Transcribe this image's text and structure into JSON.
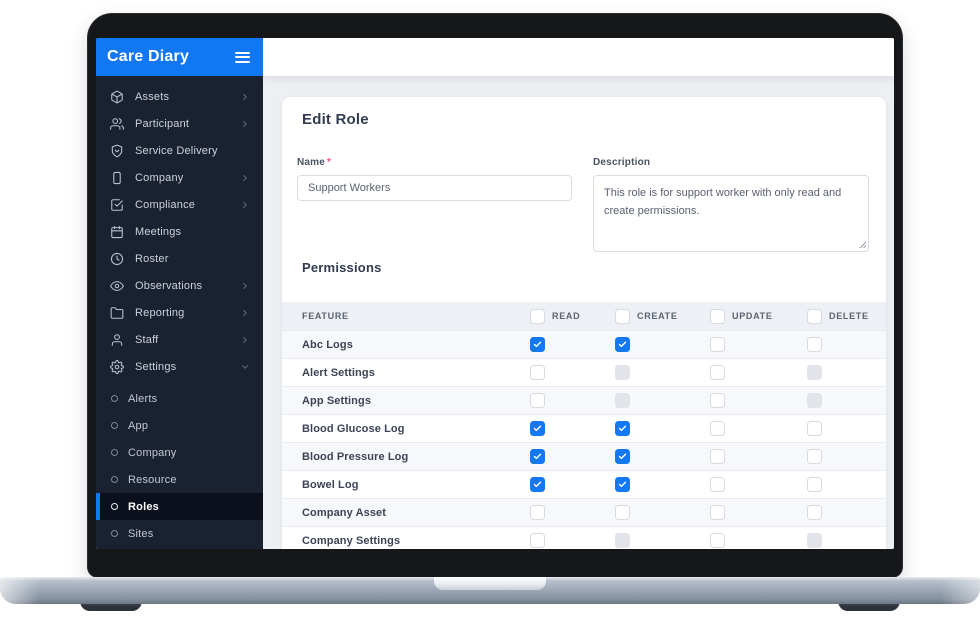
{
  "app": {
    "title": "Care Diary"
  },
  "colors": {
    "primary_blue": "#1277f2",
    "sidebar_bg": "#1a2130",
    "checked_checkbox_blue": "#1478f2",
    "active_item_bg": "#0b101c"
  },
  "sidebar": {
    "items": [
      {
        "label": "Assets",
        "icon": "cube",
        "chevron": "right"
      },
      {
        "label": "Participant",
        "icon": "people",
        "chevron": "right"
      },
      {
        "label": "Service Delivery",
        "icon": "shield",
        "chevron": ""
      },
      {
        "label": "Company",
        "icon": "tablet",
        "chevron": "right"
      },
      {
        "label": "Compliance",
        "icon": "check-square",
        "chevron": "right"
      },
      {
        "label": "Meetings",
        "icon": "calendar",
        "chevron": ""
      },
      {
        "label": "Roster",
        "icon": "clock",
        "chevron": ""
      },
      {
        "label": "Observations",
        "icon": "eye",
        "chevron": "right"
      },
      {
        "label": "Reporting",
        "icon": "folder",
        "chevron": "right"
      },
      {
        "label": "Staff",
        "icon": "person",
        "chevron": "right"
      },
      {
        "label": "Settings",
        "icon": "gear",
        "chevron": "down"
      }
    ],
    "settings_sub_items": [
      {
        "label": "Alerts",
        "active": false
      },
      {
        "label": "App",
        "active": false
      },
      {
        "label": "Company",
        "active": false
      },
      {
        "label": "Resource",
        "active": false
      },
      {
        "label": "Roles",
        "active": true
      },
      {
        "label": "Sites",
        "active": false
      }
    ]
  },
  "main": {
    "page_title": "Edit Role",
    "form": {
      "name_label": "Name",
      "required_mark": "*",
      "name_value": "Support Workers",
      "description_label": "Description",
      "description_value": "This role is for support worker with only read and create permissions."
    },
    "permissions": {
      "heading": "Permissions",
      "feature_column": "FEATURE",
      "perm_columns": [
        "READ",
        "CREATE",
        "UPDATE",
        "DELETE"
      ],
      "header_checkbox_states": [
        "unchecked",
        "unchecked",
        "unchecked",
        "unchecked"
      ],
      "rows": [
        {
          "feature": "Abc Logs",
          "states": [
            "checked",
            "checked",
            "unchecked",
            "unchecked"
          ]
        },
        {
          "feature": "Alert Settings",
          "states": [
            "unchecked",
            "disabled",
            "unchecked",
            "disabled"
          ]
        },
        {
          "feature": "App Settings",
          "states": [
            "unchecked",
            "disabled",
            "unchecked",
            "disabled"
          ]
        },
        {
          "feature": "Blood Glucose Log",
          "states": [
            "checked",
            "checked",
            "unchecked",
            "unchecked"
          ]
        },
        {
          "feature": "Blood Pressure Log",
          "states": [
            "checked",
            "checked",
            "unchecked",
            "unchecked"
          ]
        },
        {
          "feature": "Bowel Log",
          "states": [
            "checked",
            "checked",
            "unchecked",
            "unchecked"
          ]
        },
        {
          "feature": "Company Asset",
          "states": [
            "unchecked",
            "unchecked",
            "unchecked",
            "unchecked"
          ]
        },
        {
          "feature": "Company Settings",
          "states": [
            "unchecked",
            "disabled",
            "unchecked",
            "disabled"
          ]
        }
      ]
    }
  }
}
